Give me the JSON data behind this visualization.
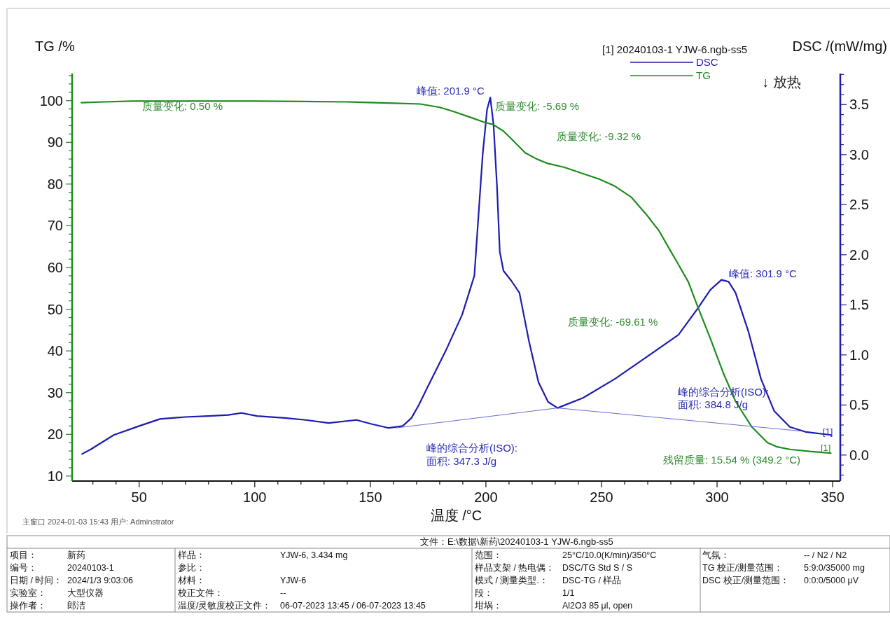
{
  "chart_data": [
    {
      "type": "line",
      "xlabel": "温度 /°C",
      "ylabel": "TG /%",
      "y2label": "DSC /(mW/mg)",
      "legend": "top right",
      "legend_title": "[1]  20240103-1 YJW-6.ngb-ss5",
      "xlim": [
        21,
        353.3
      ],
      "ylim": [
        8.8,
        106.5
      ],
      "y2lim": [
        -0.26,
        3.81
      ],
      "xticks": [
        {
          "value": 30,
          "label": null
        },
        {
          "value": 40,
          "label": null
        },
        50,
        {
          "value": 60,
          "label": null
        },
        {
          "value": 70,
          "label": null
        },
        {
          "value": 80,
          "label": null
        },
        {
          "value": 90,
          "label": null
        },
        100,
        {
          "value": 110,
          "label": null
        },
        {
          "value": 120,
          "label": null
        },
        {
          "value": 130,
          "label": null
        },
        {
          "value": 140,
          "label": null
        },
        150,
        {
          "value": 160,
          "label": null
        },
        {
          "value": 170,
          "label": null
        },
        {
          "value": 180,
          "label": null
        },
        {
          "value": 190,
          "label": null
        },
        200,
        {
          "value": 210,
          "label": null
        },
        {
          "value": 220,
          "label": null
        },
        {
          "value": 230,
          "label": null
        },
        {
          "value": 240,
          "label": null
        },
        250,
        {
          "value": 260,
          "label": null
        },
        {
          "value": 270,
          "label": null
        },
        {
          "value": 280,
          "label": null
        },
        {
          "value": 290,
          "label": null
        },
        300,
        {
          "value": 310,
          "label": null
        },
        {
          "value": 320,
          "label": null
        },
        {
          "value": 330,
          "label": null
        },
        {
          "value": 340,
          "label": null
        },
        350
      ],
      "yticks": [
        10,
        {
          "value": 12,
          "label": null
        },
        {
          "value": 14,
          "label": null
        },
        {
          "value": 16,
          "label": null
        },
        {
          "value": 18,
          "label": null
        },
        20,
        {
          "value": 22,
          "label": null
        },
        {
          "value": 24,
          "label": null
        },
        {
          "value": 26,
          "label": null
        },
        {
          "value": 28,
          "label": null
        },
        30,
        {
          "value": 32,
          "label": null
        },
        {
          "value": 34,
          "label": null
        },
        {
          "value": 36,
          "label": null
        },
        {
          "value": 38,
          "label": null
        },
        40,
        {
          "value": 42,
          "label": null
        },
        {
          "value": 44,
          "label": null
        },
        {
          "value": 46,
          "label": null
        },
        {
          "value": 48,
          "label": null
        },
        50,
        {
          "value": 52,
          "label": null
        },
        {
          "value": 54,
          "label": null
        },
        {
          "value": 56,
          "label": null
        },
        {
          "value": 58,
          "label": null
        },
        60,
        {
          "value": 62,
          "label": null
        },
        {
          "value": 64,
          "label": null
        },
        {
          "value": 66,
          "label": null
        },
        {
          "value": 68,
          "label": null
        },
        70,
        {
          "value": 72,
          "label": null
        },
        {
          "value": 74,
          "label": null
        },
        {
          "value": 76,
          "label": null
        },
        {
          "value": 78,
          "label": null
        },
        80,
        {
          "value": 82,
          "label": null
        },
        {
          "value": 84,
          "label": null
        },
        {
          "value": 86,
          "label": null
        },
        {
          "value": 88,
          "label": null
        },
        90,
        {
          "value": 92,
          "label": null
        },
        {
          "value": 94,
          "label": null
        },
        {
          "value": 96,
          "label": null
        },
        {
          "value": 98,
          "label": null
        },
        100,
        {
          "value": 102,
          "label": null
        },
        {
          "value": 104,
          "label": null
        },
        {
          "value": 106,
          "label": null
        }
      ],
      "y2ticks": [
        {
          "value": -0.2,
          "label": null
        },
        {
          "value": -0.1,
          "label": null
        },
        {
          "value": 0,
          "label": "0.0"
        },
        {
          "value": 0.1,
          "label": null
        },
        {
          "value": 0.2,
          "label": null
        },
        {
          "value": 0.3,
          "label": null
        },
        {
          "value": 0.4,
          "label": null
        },
        0.5,
        {
          "value": 0.6,
          "label": null
        },
        {
          "value": 0.7,
          "label": null
        },
        {
          "value": 0.8,
          "label": null
        },
        {
          "value": 0.9,
          "label": null
        },
        {
          "value": 1,
          "label": "1.0"
        },
        {
          "value": 1.1,
          "label": null
        },
        {
          "value": 1.2,
          "label": null
        },
        {
          "value": 1.3,
          "label": null
        },
        {
          "value": 1.4,
          "label": null
        },
        1.5,
        {
          "value": 1.6,
          "label": null
        },
        {
          "value": 1.7,
          "label": null
        },
        {
          "value": 1.8,
          "label": null
        },
        {
          "value": 1.9,
          "label": null
        },
        {
          "value": 2,
          "label": "2.0"
        },
        {
          "value": 2.1,
          "label": null
        },
        {
          "value": 2.2,
          "label": null
        },
        {
          "value": 2.3,
          "label": null
        },
        {
          "value": 2.4,
          "label": null
        },
        2.5,
        {
          "value": 2.6,
          "label": null
        },
        {
          "value": 2.7,
          "label": null
        },
        {
          "value": 2.8,
          "label": null
        },
        {
          "value": 2.9,
          "label": null
        },
        {
          "value": 3,
          "label": "3.0"
        },
        {
          "value": 3.1,
          "label": null
        },
        {
          "value": 3.2,
          "label": null
        },
        {
          "value": 3.3,
          "label": null
        },
        {
          "value": 3.4,
          "label": null
        },
        3.5,
        {
          "value": 3.6,
          "label": null
        },
        {
          "value": 3.7,
          "label": null
        },
        {
          "value": 3.8,
          "label": null
        }
      ],
      "series": [
        {
          "name": "DSC",
          "color": "#1c1cb0",
          "axis": "y2",
          "x": [
            25.3,
            29.3,
            39,
            50,
            59,
            70,
            80,
            88.6,
            94.2,
            101,
            113,
            122,
            132,
            144,
            150.5,
            158,
            164,
            167.8,
            171,
            175,
            182.6,
            189.7,
            195,
            198.6,
            200.5,
            201.9,
            203.3,
            204.8,
            206,
            207.6,
            211,
            214.5,
            218.6,
            222.7,
            226.9,
            231,
            242,
            255.8,
            269.6,
            283.3,
            291.5,
            297.1,
            301.9,
            305,
            308,
            313.6,
            319,
            324.7,
            331.5,
            338.5,
            349.4
          ],
          "values": [
            0.01,
            0.06,
            0.2,
            0.29,
            0.36,
            0.38,
            0.39,
            0.4,
            0.42,
            0.39,
            0.37,
            0.35,
            0.32,
            0.35,
            0.31,
            0.27,
            0.29,
            0.37,
            0.5,
            0.69,
            1.04,
            1.4,
            1.79,
            3.0,
            3.45,
            3.57,
            3.3,
            2.68,
            2.03,
            1.84,
            1.74,
            1.62,
            1.14,
            0.73,
            0.53,
            0.47,
            0.57,
            0.76,
            0.98,
            1.2,
            1.46,
            1.65,
            1.75,
            1.73,
            1.62,
            1.23,
            0.76,
            0.44,
            0.28,
            0.23,
            0.2
          ]
        },
        {
          "name": "TG",
          "color": "#1e8c1e",
          "x": [
            25,
            35,
            47,
            60,
            80,
            100,
            120,
            140,
            160,
            171.5,
            180,
            186,
            193.8,
            199.4,
            203,
            207.6,
            212,
            217,
            222,
            226.4,
            234,
            242,
            249,
            255.8,
            263,
            269.7,
            275,
            279,
            283.5,
            287.6,
            291.5,
            297,
            302.7,
            308,
            315,
            321.8,
            326,
            331.5,
            340,
            349.2
          ],
          "values": [
            99.5,
            99.7,
            99.9,
            99.9,
            99.9,
            99.9,
            99.8,
            99.7,
            99.4,
            99.2,
            98.4,
            97.4,
            95.9,
            94.8,
            94.3,
            92.7,
            90.3,
            87.5,
            86.0,
            85.0,
            84.0,
            82.5,
            81.2,
            79.5,
            76.8,
            72.5,
            68.7,
            64.8,
            60.5,
            56.5,
            50.8,
            43.1,
            34.7,
            27.9,
            21.8,
            18.0,
            17.0,
            16.4,
            15.9,
            15.5
          ]
        },
        {
          "color": "#6b6bd6",
          "axis": "y2",
          "x": [
            161,
            231,
            336
          ],
          "values": [
            0.27,
            0.47,
            0.24
          ]
        }
      ],
      "annotations": [
        "质量变化: 0.50 %",
        "峰值: 201.9 °C",
        "质量变化: -5.69 %",
        "质量变化: -9.32 %",
        "峰值: 301.9 °C",
        "质量变化: -69.61 %",
        "峰的综合分析(ISO):",
        "面积: 347.3 J/g",
        "峰的综合分析(ISO):",
        "面积: 384.8 J/g",
        "残留质量: 15.54 % (349.2 °C)",
        "[1]",
        "[1]",
        "↓ 放热",
        "主窗口   2024-01-03 15:43   用户: Adminstrator"
      ]
    },
    {
      "type": "other",
      "annotations": [
        "文件：E:\\数据\\新药\\20240103-1 YJW-6.ngb-ss5",
        "项目：",
        "新药",
        "编号：",
        "20240103-1",
        "日期 / 时间：",
        "2024/1/3 9:03:06",
        "实验室：",
        "大型仪器",
        "操作者：",
        "郎洁",
        "样品：",
        "YJW-6, 3.434 mg",
        "参比：",
        "材料：",
        "YJW-6",
        "校正文件：",
        "--",
        "温度/灵敏度校正文件：",
        "06-07-2023 13:45 / 06-07-2023 13:45",
        "范围：",
        "25°C/10.0(K/min)/350°C",
        "样品支架 / 热电偶：",
        "DSC/TG Std S / S",
        "模式 / 测量类型.：",
        "DSC-TG / 样品",
        "段：",
        "1/1",
        "坩埚：",
        "Al2O3 85 μl, open",
        "气氛：",
        "-- / N2 / N2",
        "TG 校正/测量范围：",
        "5:9:0/35000 mg",
        "DSC 校正/测量范围：",
        "0:0:0/5000 μV"
      ]
    }
  ]
}
